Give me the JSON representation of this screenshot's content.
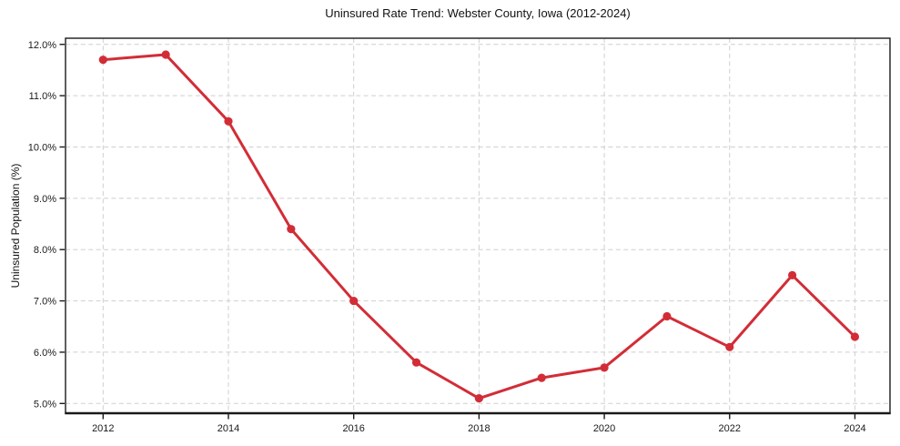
{
  "chart_data": {
    "type": "line",
    "title": "Uninsured Rate Trend: Webster County, Iowa (2012-2024)",
    "xlabel": "",
    "ylabel": "Uninsured Population (%)",
    "x": [
      2012,
      2013,
      2014,
      2015,
      2016,
      2017,
      2018,
      2019,
      2020,
      2021,
      2022,
      2023,
      2024
    ],
    "series": [
      {
        "name": "Uninsured Population (%)",
        "values": [
          11.7,
          11.8,
          10.5,
          8.4,
          7.0,
          5.8,
          5.1,
          5.5,
          5.7,
          6.7,
          6.1,
          7.5,
          6.3
        ],
        "color": "#d22d37"
      }
    ],
    "xlim": [
      2011.4,
      2024.56
    ],
    "ylim": [
      4.81,
      12.12
    ],
    "xticks": {
      "values": [
        2012,
        2014,
        2016,
        2018,
        2020,
        2022,
        2024
      ],
      "labels": [
        "2012",
        "2014",
        "2016",
        "2018",
        "2020",
        "2022",
        "2024"
      ]
    },
    "yticks": {
      "values": [
        5,
        6,
        7,
        8,
        9,
        10,
        11,
        12
      ],
      "labels": [
        "5.0%",
        "6.0%",
        "7.0%",
        "8.0%",
        "9.0%",
        "10.0%",
        "11.0%",
        "12.0%"
      ]
    },
    "grid": true,
    "grid_style": "dashed",
    "legend": false,
    "marker": "circle",
    "colors": {
      "line": "#d22d37",
      "grid": "#cfcfcf",
      "axis": "#1a1a1a",
      "background": "#ffffff",
      "text": "#1a1a1a"
    }
  }
}
